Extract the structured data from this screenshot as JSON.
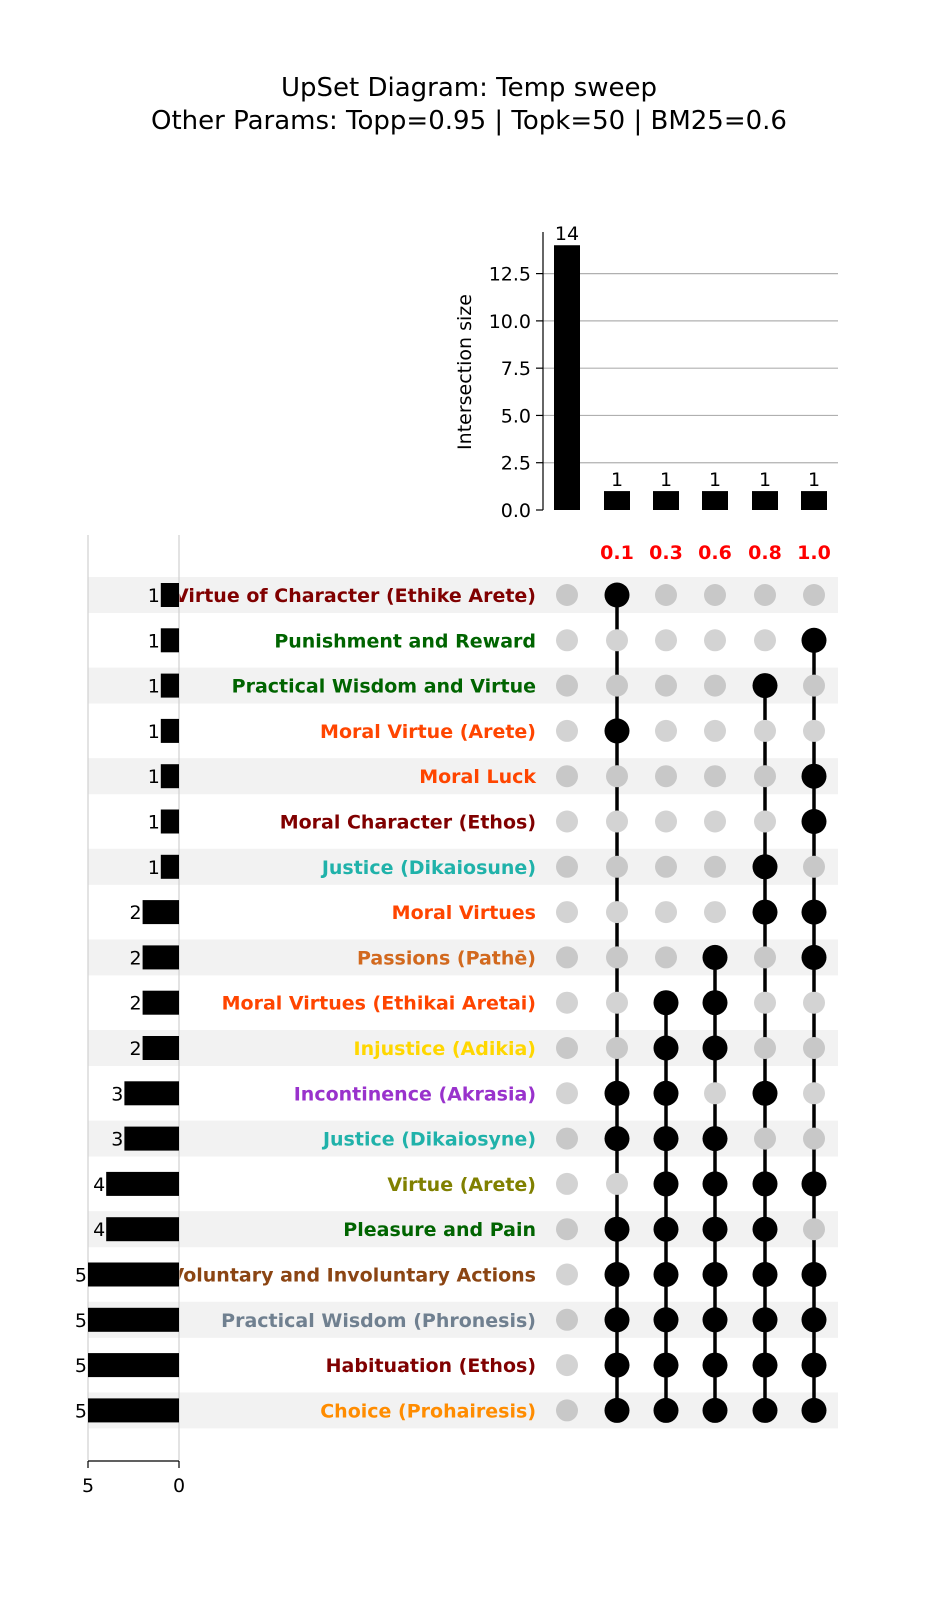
{
  "chart_data": {
    "type": "upset",
    "title_line1": "UpSet Diagram: Temp sweep",
    "title_line2": "Other Params: Topp=0.95 | Topk=50 | BM25=0.6",
    "intersection": {
      "ylabel": "Intersection size",
      "ylim": [
        0,
        14.7
      ],
      "yticks": [
        "0.0",
        "2.5",
        "5.0",
        "7.5",
        "10.0",
        "12.5"
      ],
      "ytick_values": [
        0,
        2.5,
        5,
        7.5,
        10,
        12.5
      ],
      "values": [
        14,
        1,
        1,
        1,
        1,
        1
      ],
      "value_labels": [
        "14",
        "1",
        "1",
        "1",
        "1",
        "1"
      ],
      "grid": true
    },
    "column_labels": [
      "",
      "0.1",
      "0.3",
      "0.6",
      "0.8",
      "1.0"
    ],
    "column_label_color": "#ff0000",
    "set_size_ticks": [
      "5",
      "0"
    ],
    "set_size_tick_values": [
      5,
      0
    ],
    "sets": [
      {
        "name": "Virtue of Character (Ethike Arete)",
        "size": 1,
        "size_label": "1",
        "color": "#800000"
      },
      {
        "name": "Punishment and Reward",
        "size": 1,
        "size_label": "1",
        "color": "#006400"
      },
      {
        "name": "Practical Wisdom and Virtue",
        "size": 1,
        "size_label": "1",
        "color": "#006400"
      },
      {
        "name": "Moral Virtue (Arete)",
        "size": 1,
        "size_label": "1",
        "color": "#ff4500"
      },
      {
        "name": "Moral Luck",
        "size": 1,
        "size_label": "1",
        "color": "#ff4500"
      },
      {
        "name": "Moral Character (Ethos)",
        "size": 1,
        "size_label": "1",
        "color": "#800000"
      },
      {
        "name": "Justice (Dikaiosune)",
        "size": 1,
        "size_label": "1",
        "color": "#20b2aa"
      },
      {
        "name": "Moral Virtues",
        "size": 2,
        "size_label": "2",
        "color": "#ff4500"
      },
      {
        "name": "Passions (Pathē)",
        "size": 2,
        "size_label": "2",
        "color": "#d2691e"
      },
      {
        "name": "Moral Virtues (Ethikai Aretai)",
        "size": 2,
        "size_label": "2",
        "color": "#ff4500"
      },
      {
        "name": "Injustice (Adikia)",
        "size": 2,
        "size_label": "2",
        "color": "#ffd700"
      },
      {
        "name": "Incontinence (Akrasia)",
        "size": 3,
        "size_label": "3",
        "color": "#9932cc"
      },
      {
        "name": "Justice (Dikaiosyne)",
        "size": 3,
        "size_label": "3",
        "color": "#20b2aa"
      },
      {
        "name": "Virtue (Arete)",
        "size": 4,
        "size_label": "4",
        "color": "#808000"
      },
      {
        "name": "Pleasure and Pain",
        "size": 4,
        "size_label": "4",
        "color": "#006400"
      },
      {
        "name": "Voluntary and Involuntary Actions",
        "size": 5,
        "size_label": "5",
        "color": "#8b4513"
      },
      {
        "name": "Practical Wisdom (Phronesis)",
        "size": 5,
        "size_label": "5",
        "color": "#708090"
      },
      {
        "name": "Habituation (Ethos)",
        "size": 5,
        "size_label": "5",
        "color": "#800000"
      },
      {
        "name": "Choice (Prohairesis)",
        "size": 5,
        "size_label": "5",
        "color": "#ff8c00"
      }
    ],
    "matrix": [
      [
        0,
        1,
        0,
        0,
        0,
        0
      ],
      [
        0,
        0,
        0,
        0,
        0,
        1
      ],
      [
        0,
        0,
        0,
        0,
        1,
        0
      ],
      [
        0,
        1,
        0,
        0,
        0,
        0
      ],
      [
        0,
        0,
        0,
        0,
        0,
        1
      ],
      [
        0,
        0,
        0,
        0,
        0,
        1
      ],
      [
        0,
        0,
        0,
        0,
        1,
        0
      ],
      [
        0,
        0,
        0,
        0,
        1,
        1
      ],
      [
        0,
        0,
        0,
        1,
        0,
        1
      ],
      [
        0,
        0,
        1,
        1,
        0,
        0
      ],
      [
        0,
        0,
        1,
        1,
        0,
        0
      ],
      [
        0,
        1,
        1,
        0,
        1,
        0
      ],
      [
        0,
        1,
        1,
        1,
        0,
        0
      ],
      [
        0,
        0,
        1,
        1,
        1,
        1
      ],
      [
        0,
        1,
        1,
        1,
        1,
        0
      ],
      [
        0,
        1,
        1,
        1,
        1,
        1
      ],
      [
        0,
        1,
        1,
        1,
        1,
        1
      ],
      [
        0,
        1,
        1,
        1,
        1,
        1
      ],
      [
        0,
        1,
        1,
        1,
        1,
        1
      ]
    ]
  }
}
